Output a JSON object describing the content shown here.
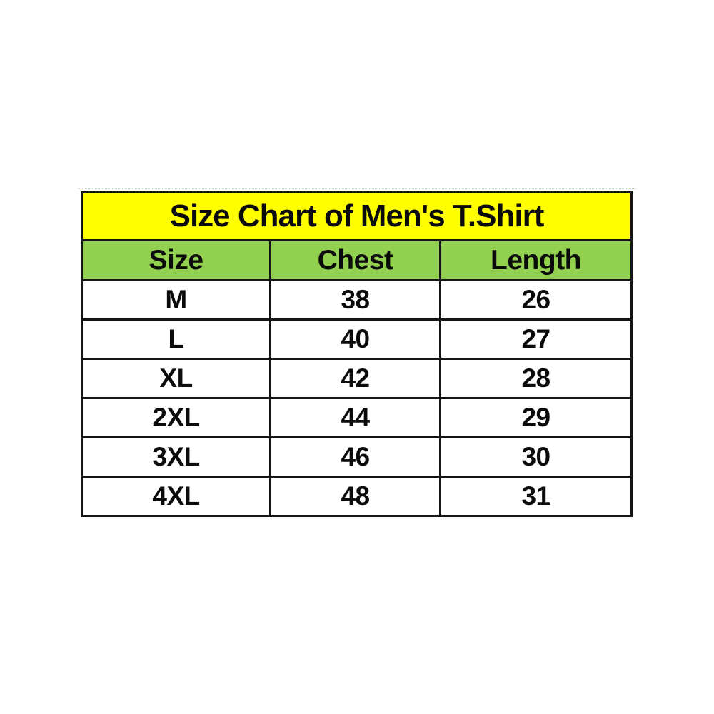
{
  "page": {
    "background": "#ffffff"
  },
  "table": {
    "colors": {
      "yellow": "#ffff00",
      "green": "#92d050",
      "border": "#151515"
    }
  },
  "chart_data": {
    "type": "table",
    "title": "Size Chart of Men's T.Shirt",
    "columns": [
      "Size",
      "Chest",
      "Length"
    ],
    "rows": [
      [
        "M",
        38,
        26
      ],
      [
        "L",
        40,
        27
      ],
      [
        "XL",
        42,
        28
      ],
      [
        "2XL",
        44,
        29
      ],
      [
        "3XL",
        46,
        30
      ],
      [
        "4XL",
        48,
        31
      ]
    ]
  }
}
